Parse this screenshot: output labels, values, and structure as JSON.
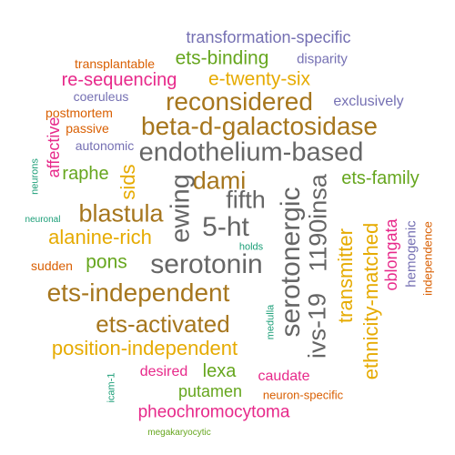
{
  "words": [
    {
      "key": "transformation-specific",
      "text": "transformation-specific",
      "color": "#7570b3"
    },
    {
      "key": "transplantable",
      "text": "transplantable",
      "color": "#d95f02"
    },
    {
      "key": "ets-binding",
      "text": "ets-binding",
      "color": "#66a61e"
    },
    {
      "key": "disparity",
      "text": "disparity",
      "color": "#7570b3"
    },
    {
      "key": "re-sequencing",
      "text": "re-sequencing",
      "color": "#e7298a"
    },
    {
      "key": "e-twenty-six",
      "text": "e-twenty-six",
      "color": "#e6ab02"
    },
    {
      "key": "coeruleus",
      "text": "coeruleus",
      "color": "#7570b3"
    },
    {
      "key": "reconsidered",
      "text": "reconsidered",
      "color": "#a6761d"
    },
    {
      "key": "exclusively",
      "text": "exclusively",
      "color": "#7570b3"
    },
    {
      "key": "postmortem",
      "text": "postmortem",
      "color": "#d95f02"
    },
    {
      "key": "passive",
      "text": "passive",
      "color": "#d95f02"
    },
    {
      "key": "affective",
      "text": "affective",
      "color": "#e7298a"
    },
    {
      "key": "beta-d-galactosidase",
      "text": "beta-d-galactosidase",
      "color": "#a6761d"
    },
    {
      "key": "autonomic",
      "text": "autonomic",
      "color": "#7570b3"
    },
    {
      "key": "endothelium-based",
      "text": "endothelium-based",
      "color": "#666666"
    },
    {
      "key": "neurons",
      "text": "neurons",
      "color": "#1b9e77"
    },
    {
      "key": "raphe",
      "text": "raphe",
      "color": "#66a61e"
    },
    {
      "key": "sids",
      "text": "sids",
      "color": "#e6ab02"
    },
    {
      "key": "dami",
      "text": "dami",
      "color": "#a6761d"
    },
    {
      "key": "ets-family",
      "text": "ets-family",
      "color": "#66a61e"
    },
    {
      "key": "ewing",
      "text": "ewing",
      "color": "#666666"
    },
    {
      "key": "fifth",
      "text": "fifth",
      "color": "#666666"
    },
    {
      "key": "serotonergic",
      "text": "serotonergic",
      "color": "#666666"
    },
    {
      "key": "ivs-19",
      "text": "ivs-19",
      "color": "#666666"
    },
    {
      "key": "1190insa",
      "text": "1190insa",
      "color": "#666666"
    },
    {
      "key": "blastula",
      "text": "blastula",
      "color": "#a6761d"
    },
    {
      "key": "neuronal",
      "text": "neuronal",
      "color": "#1b9e77"
    },
    {
      "key": "5-ht",
      "text": "5-ht",
      "color": "#666666"
    },
    {
      "key": "transmitter",
      "text": "transmitter",
      "color": "#e6ab02"
    },
    {
      "key": "ethnicity-matched",
      "text": "ethnicity-matched",
      "color": "#e6ab02"
    },
    {
      "key": "oblongata",
      "text": "oblongata",
      "color": "#e7298a"
    },
    {
      "key": "hemogenic",
      "text": "hemogenic",
      "color": "#7570b3"
    },
    {
      "key": "independence",
      "text": "independence",
      "color": "#d95f02"
    },
    {
      "key": "alanine-rich",
      "text": "alanine-rich",
      "color": "#e6ab02"
    },
    {
      "key": "holds",
      "text": "holds",
      "color": "#1b9e77"
    },
    {
      "key": "sudden",
      "text": "sudden",
      "color": "#d95f02"
    },
    {
      "key": "pons",
      "text": "pons",
      "color": "#66a61e"
    },
    {
      "key": "serotonin",
      "text": "serotonin",
      "color": "#666666"
    },
    {
      "key": "ets-independent",
      "text": "ets-independent",
      "color": "#a6761d"
    },
    {
      "key": "medulla",
      "text": "medulla",
      "color": "#1b9e77"
    },
    {
      "key": "ets-activated",
      "text": "ets-activated",
      "color": "#a6761d"
    },
    {
      "key": "position-independent",
      "text": "position-independent",
      "color": "#e6ab02"
    },
    {
      "key": "desired",
      "text": "desired",
      "color": "#e7298a"
    },
    {
      "key": "lexa",
      "text": "lexa",
      "color": "#66a61e"
    },
    {
      "key": "caudate",
      "text": "caudate",
      "color": "#e7298a"
    },
    {
      "key": "icam-1",
      "text": "icam-1",
      "color": "#1b9e77"
    },
    {
      "key": "putamen",
      "text": "putamen",
      "color": "#66a61e"
    },
    {
      "key": "neuron-specific",
      "text": "neuron-specific",
      "color": "#d95f02"
    },
    {
      "key": "pheochromocytoma",
      "text": "pheochromocytoma",
      "color": "#e7298a"
    },
    {
      "key": "megakaryocytic",
      "text": "megakaryocytic",
      "color": "#66a61e"
    }
  ]
}
